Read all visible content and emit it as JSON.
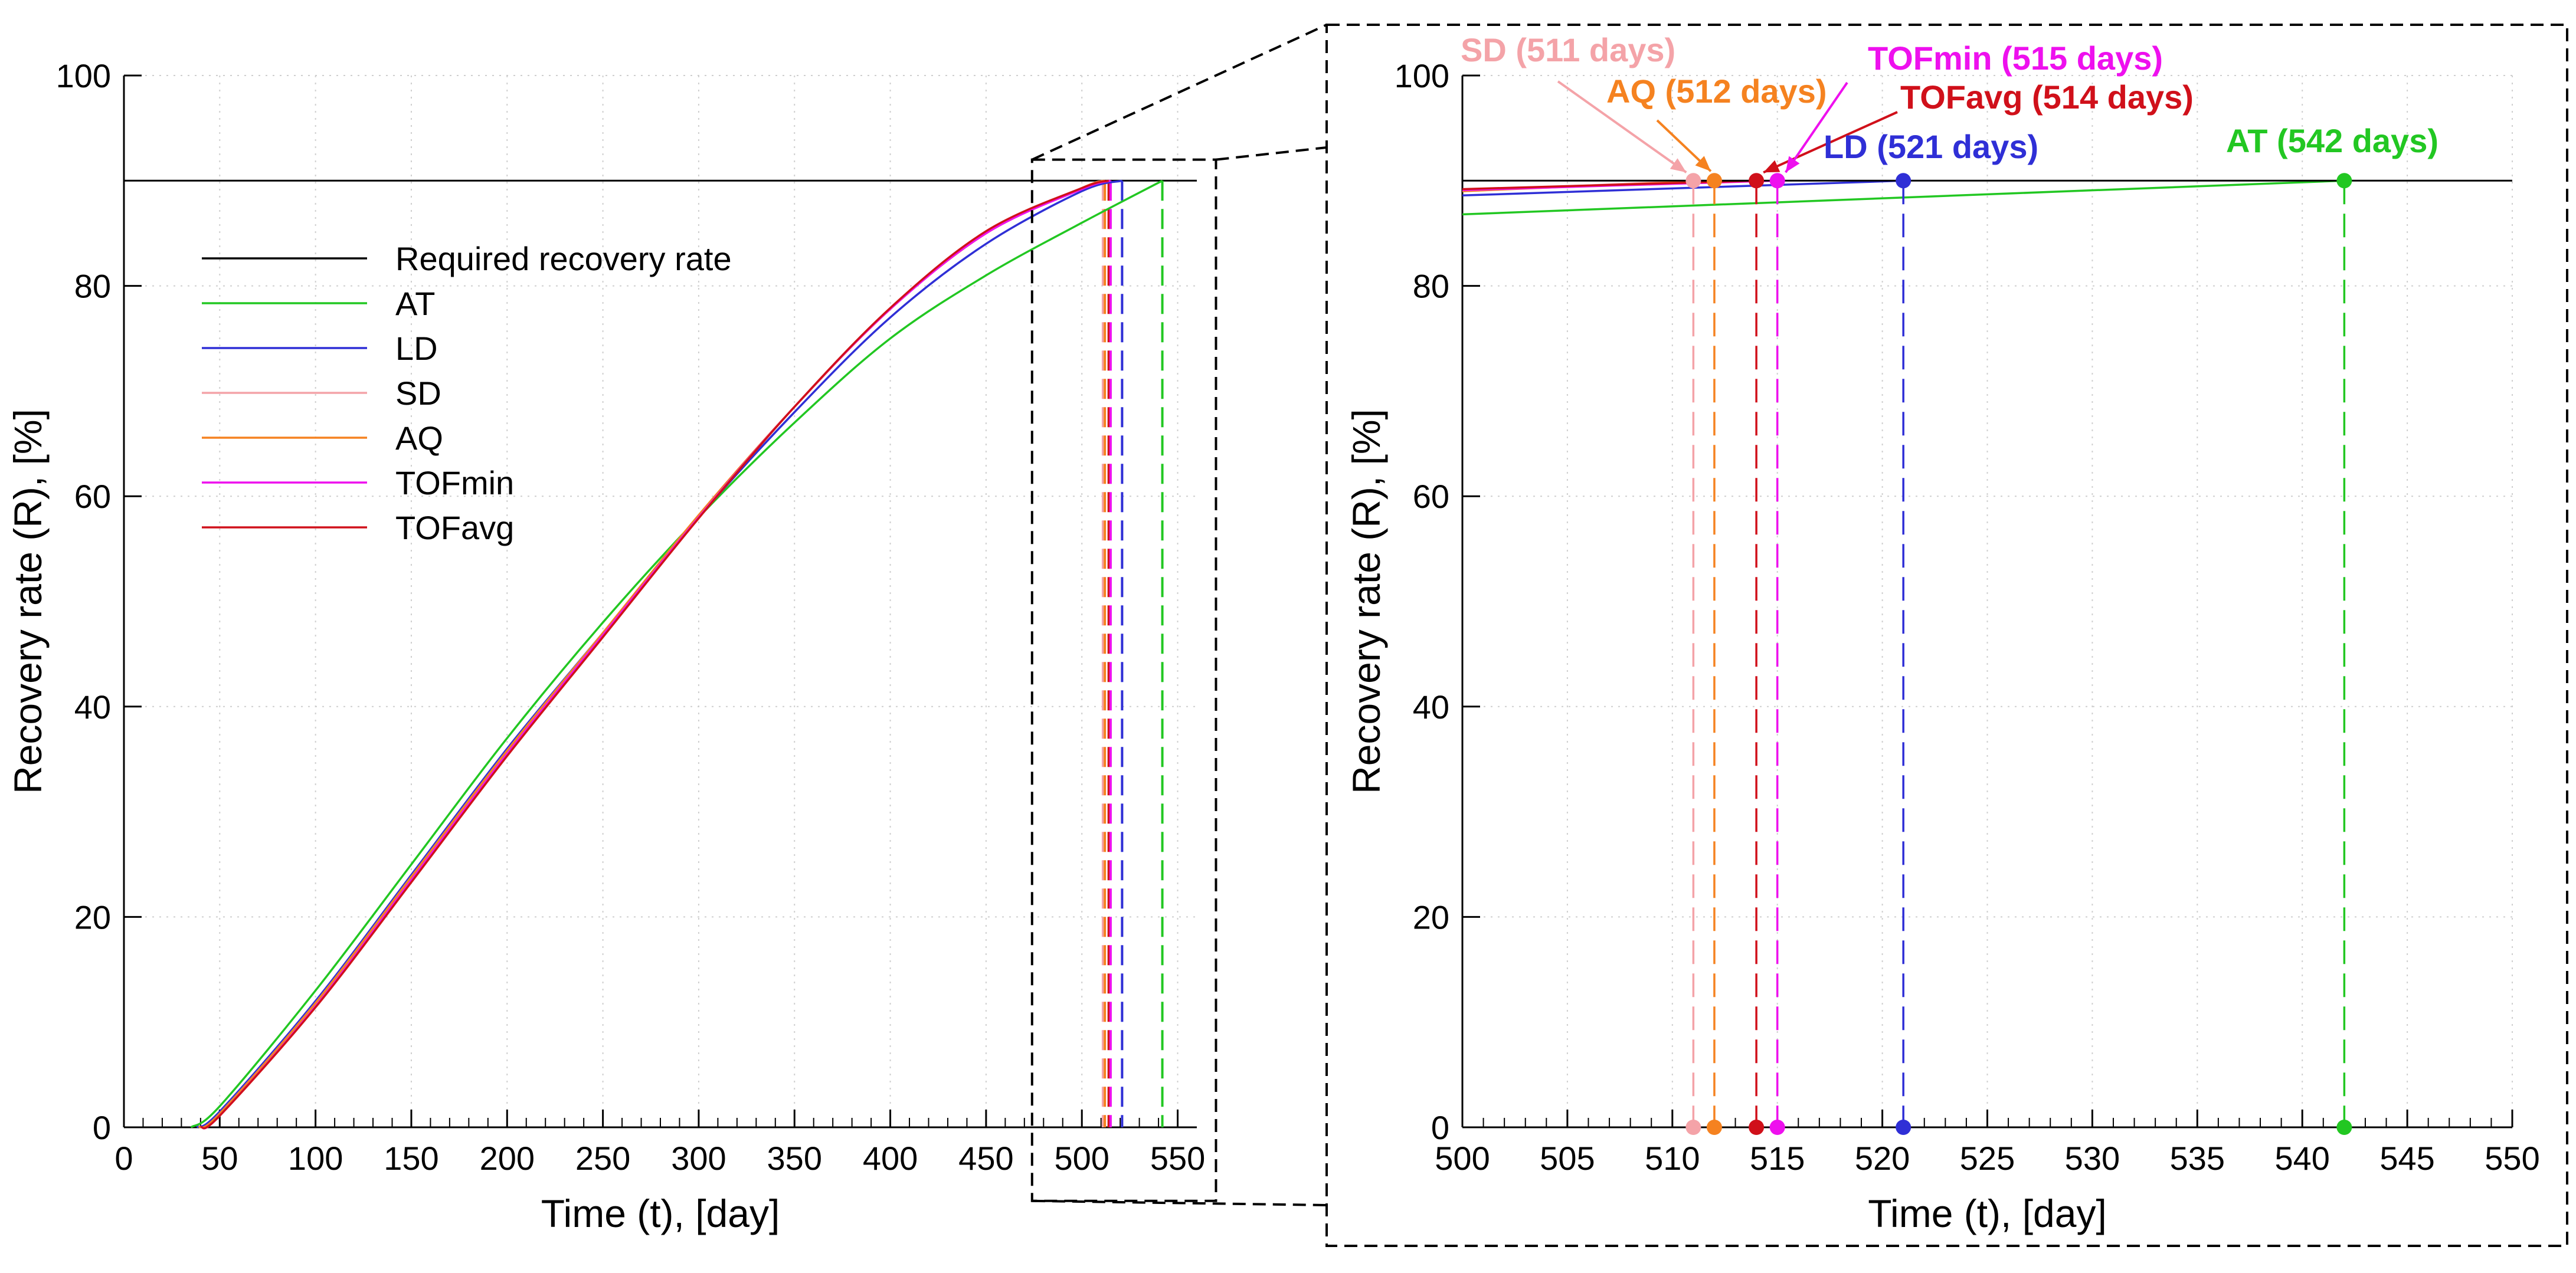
{
  "chart_data": [
    {
      "type": "line",
      "id": "main",
      "xlabel": "Time (t), [day]",
      "ylabel": "Recovery rate  (R), [%]",
      "xlim": [
        0,
        560
      ],
      "ylim": [
        0,
        100
      ],
      "xticks": [
        0,
        50,
        100,
        150,
        200,
        250,
        300,
        350,
        400,
        450,
        500,
        550
      ],
      "yticks": [
        0,
        20,
        40,
        60,
        80,
        100
      ],
      "grid": true,
      "legend_position": "upper-left",
      "legend": [
        {
          "label": "Required recovery rate",
          "color": "#000000"
        },
        {
          "label": "AT",
          "color": "#22c722"
        },
        {
          "label": "LD",
          "color": "#2f2fd6"
        },
        {
          "label": "SD",
          "color": "#f4a3a8"
        },
        {
          "label": "AQ",
          "color": "#f58220"
        },
        {
          "label": "TOFmin",
          "color": "#ee10ee"
        },
        {
          "label": "TOFavg",
          "color": "#d0101a"
        }
      ],
      "threshold": 90,
      "series": [
        {
          "name": "AT",
          "color": "#22c722",
          "x": [
            35,
            50,
            100,
            150,
            200,
            250,
            300,
            350,
            400,
            450,
            500,
            542
          ],
          "y": [
            0,
            2,
            13,
            25,
            37,
            48,
            58,
            67,
            75,
            81,
            86,
            90
          ]
        },
        {
          "name": "LD",
          "color": "#2f2fd6",
          "x": [
            38,
            50,
            100,
            150,
            200,
            250,
            300,
            350,
            400,
            450,
            500,
            521
          ],
          "y": [
            0,
            1.5,
            12,
            24,
            36,
            47,
            58,
            68,
            77,
            84,
            89,
            90
          ]
        },
        {
          "name": "SD",
          "color": "#f4a3a8",
          "x": [
            39,
            50,
            100,
            150,
            200,
            250,
            300,
            350,
            400,
            450,
            500,
            511
          ],
          "y": [
            0,
            1.3,
            11.8,
            23.8,
            35.8,
            47,
            58.2,
            68.5,
            77.8,
            85,
            89.3,
            90
          ]
        },
        {
          "name": "AQ",
          "color": "#f58220",
          "x": [
            39,
            50,
            100,
            150,
            200,
            250,
            300,
            350,
            400,
            450,
            500,
            512
          ],
          "y": [
            0,
            1.3,
            11.8,
            23.8,
            35.8,
            47,
            58.2,
            68.5,
            77.8,
            85,
            89.3,
            90
          ]
        },
        {
          "name": "TOFmin",
          "color": "#ee10ee",
          "x": [
            40,
            50,
            100,
            150,
            200,
            250,
            300,
            350,
            400,
            450,
            500,
            515
          ],
          "y": [
            0,
            1.1,
            11.5,
            23.5,
            35.5,
            46.8,
            58,
            68.5,
            77.8,
            85,
            89.2,
            90
          ]
        },
        {
          "name": "TOFavg",
          "color": "#d0101a",
          "x": [
            40,
            50,
            100,
            150,
            200,
            250,
            300,
            350,
            400,
            450,
            500,
            514
          ],
          "y": [
            0,
            1.1,
            11.4,
            23.3,
            35.3,
            46.6,
            57.9,
            68.5,
            77.9,
            85.2,
            89.3,
            90
          ]
        }
      ],
      "drops": [
        {
          "name": "SD",
          "x": 511,
          "color": "#f4a3a8"
        },
        {
          "name": "AQ",
          "x": 512,
          "color": "#f58220"
        },
        {
          "name": "TOFavg",
          "x": 514,
          "color": "#d0101a"
        },
        {
          "name": "TOFmin",
          "x": 515,
          "color": "#ee10ee"
        },
        {
          "name": "LD",
          "x": 521,
          "color": "#2f2fd6"
        },
        {
          "name": "AT",
          "x": 542,
          "color": "#22c722"
        }
      ],
      "zoom_box": {
        "x": [
          474,
          570
        ],
        "y": [
          -7,
          92
        ]
      }
    },
    {
      "type": "line",
      "id": "zoom",
      "xlabel": "Time (t), [day]",
      "ylabel": "Recovery rate  (R), [%]",
      "xlim": [
        500,
        550
      ],
      "ylim": [
        0,
        100
      ],
      "xticks": [
        500,
        505,
        510,
        515,
        520,
        525,
        530,
        535,
        540,
        545,
        550
      ],
      "yticks": [
        0,
        20,
        40,
        60,
        80,
        100
      ],
      "grid": true,
      "threshold": 90,
      "series": [
        {
          "name": "AT",
          "color": "#22c722",
          "x": [
            500,
            542
          ],
          "y": [
            86.8,
            90
          ]
        },
        {
          "name": "LD",
          "color": "#2f2fd6",
          "x": [
            500,
            521
          ],
          "y": [
            88.6,
            90
          ]
        },
        {
          "name": "SD",
          "color": "#f4a3a8",
          "x": [
            500,
            511
          ],
          "y": [
            89.0,
            90
          ]
        },
        {
          "name": "AQ",
          "color": "#f58220",
          "x": [
            500,
            512
          ],
          "y": [
            89.0,
            90
          ]
        },
        {
          "name": "TOFmin",
          "color": "#ee10ee",
          "x": [
            500,
            515
          ],
          "y": [
            89.1,
            90
          ]
        },
        {
          "name": "TOFavg",
          "color": "#d0101a",
          "x": [
            500,
            514
          ],
          "y": [
            89.2,
            90
          ]
        }
      ],
      "markers": [
        {
          "name": "SD",
          "x": 511,
          "color": "#f4a3a8",
          "label": "SD (511 days)"
        },
        {
          "name": "AQ",
          "x": 512,
          "color": "#f58220",
          "label": "AQ (512 days)"
        },
        {
          "name": "TOFavg",
          "x": 514,
          "color": "#d0101a",
          "label": "TOFavg (514 days)"
        },
        {
          "name": "TOFmin",
          "x": 515,
          "color": "#ee10ee",
          "label": "TOFmin (515 days)"
        },
        {
          "name": "LD",
          "x": 521,
          "color": "#2f2fd6",
          "label": "LD (521 days)"
        },
        {
          "name": "AT",
          "x": 542,
          "color": "#22c722",
          "label": "AT (542 days)"
        }
      ]
    }
  ]
}
